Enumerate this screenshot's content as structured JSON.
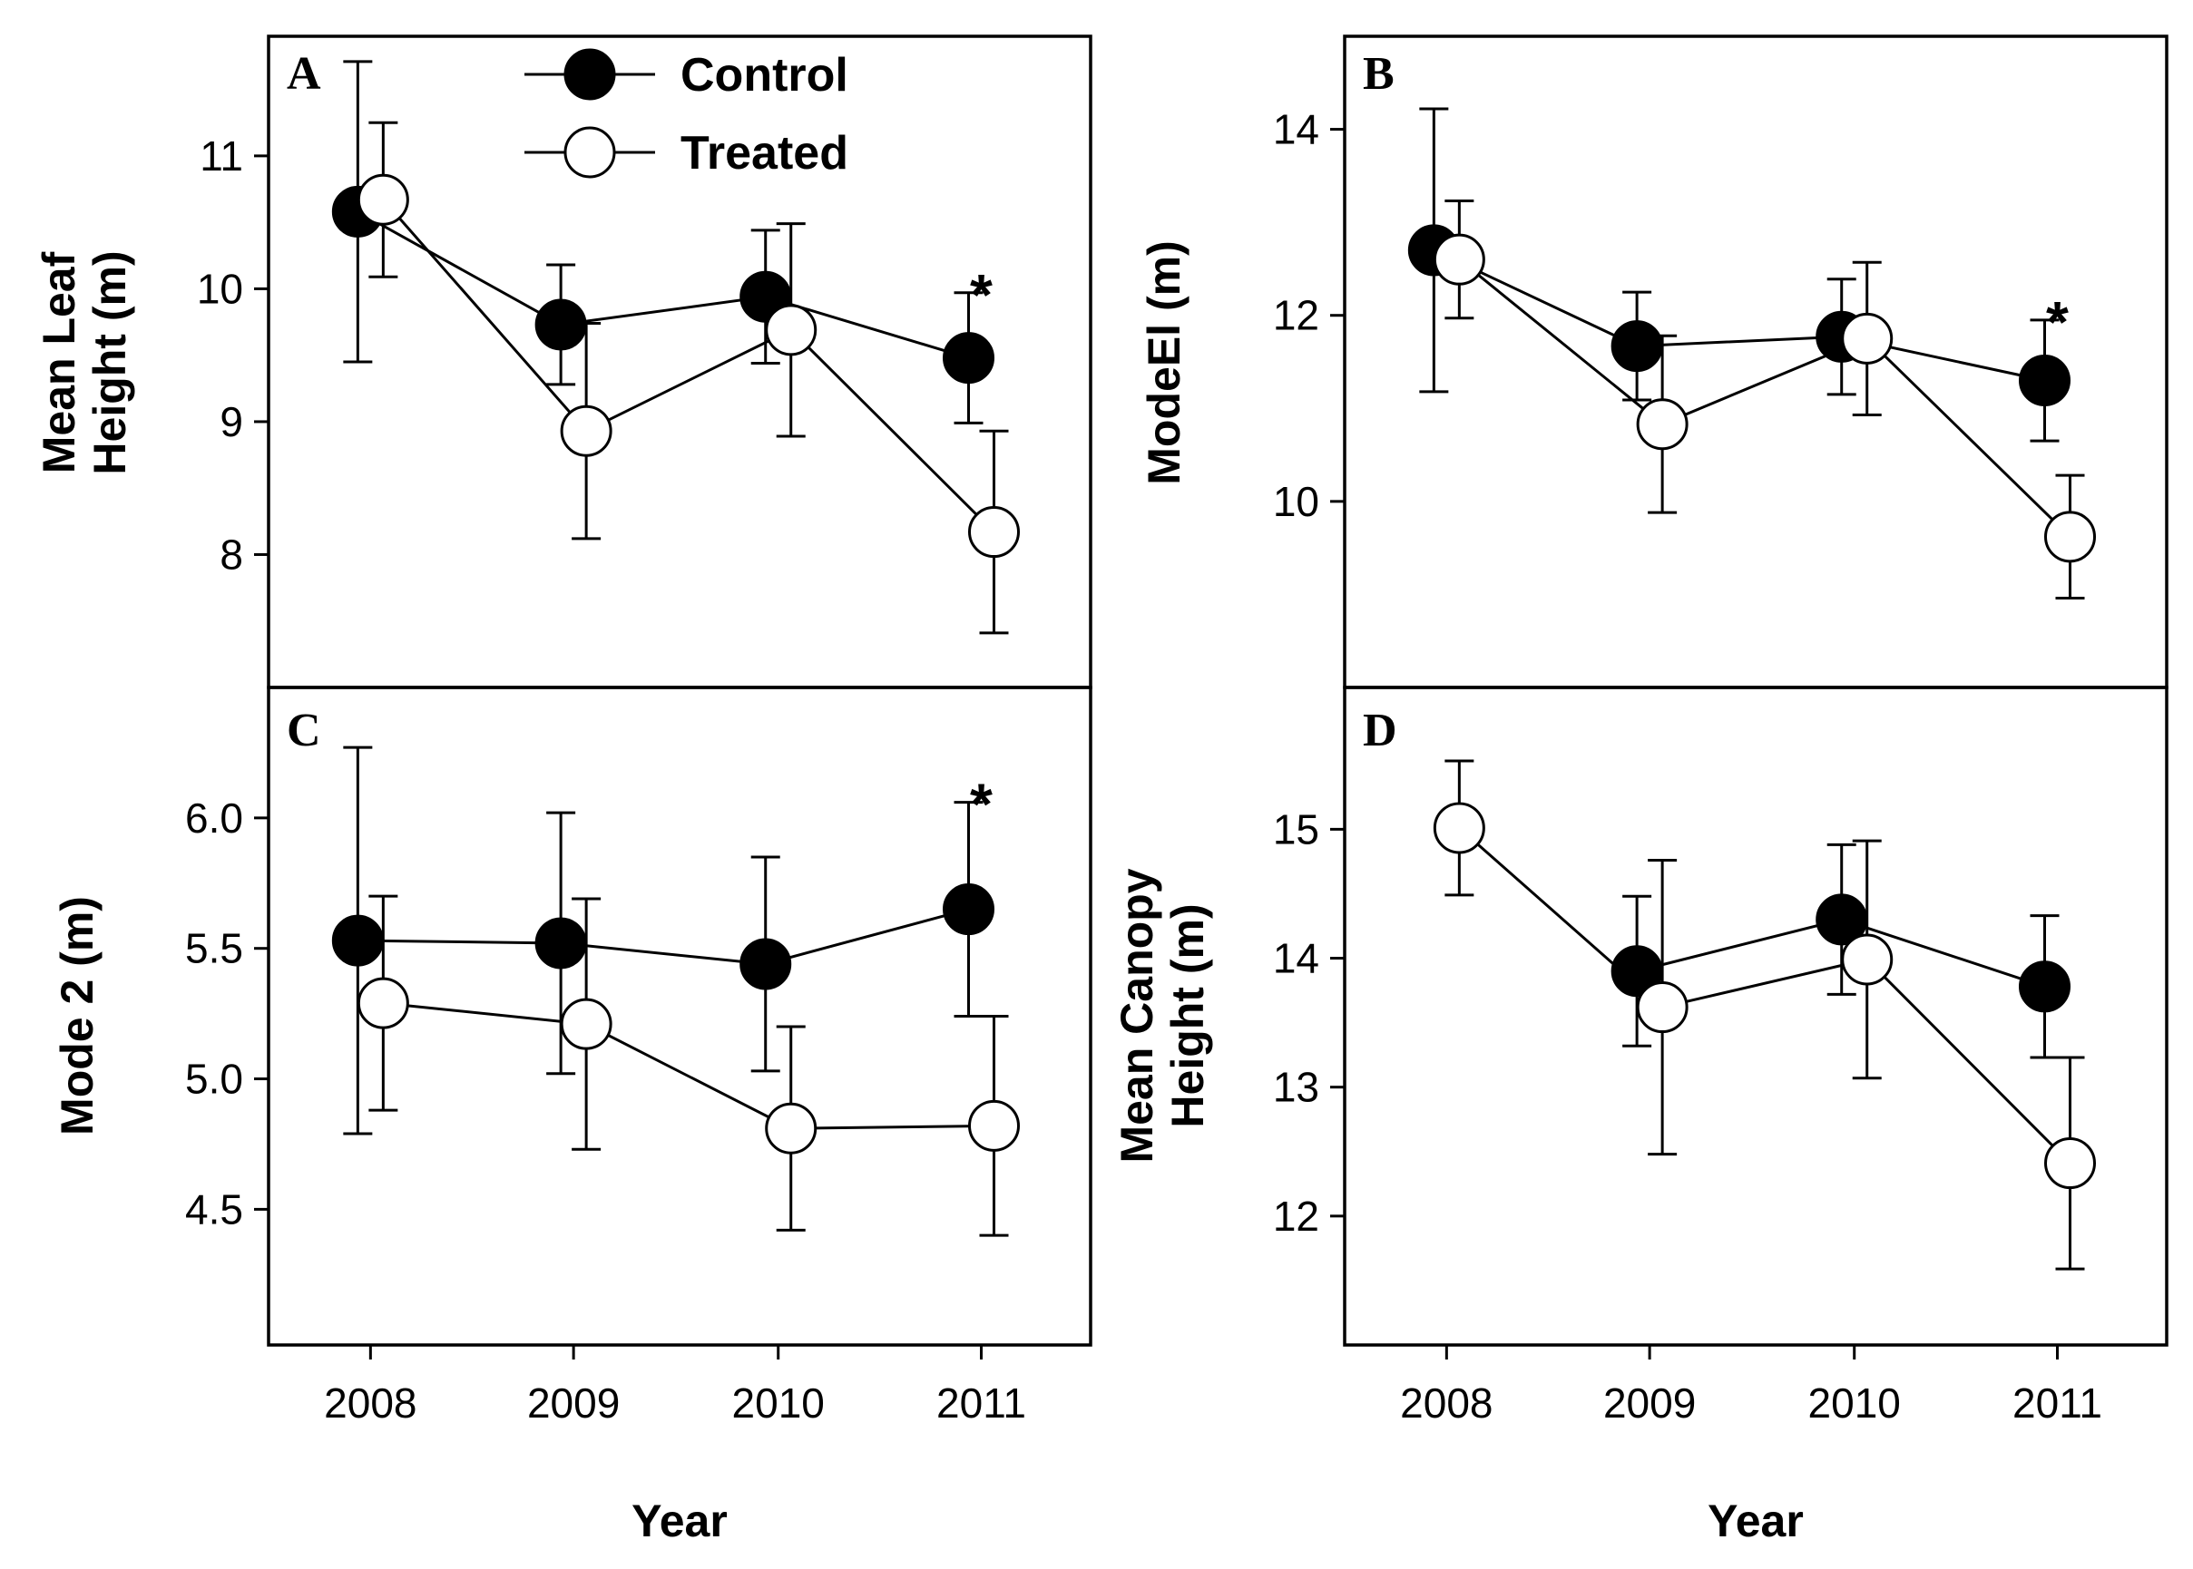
{
  "legend": {
    "control_label": "Control",
    "treated_label": "Treated"
  },
  "colors": {
    "control_fill": "#000000",
    "treated_fill": "#ffffff",
    "stroke": "#000000"
  },
  "chart_data": [
    {
      "id": "A",
      "panel_label": "A",
      "type": "line",
      "xlabel": "",
      "ylabel_lines": [
        "Mean Leaf",
        "Height (m)"
      ],
      "categories": [
        "2008",
        "2009",
        "2010",
        "2011"
      ],
      "ylim": [
        7,
        11.9
      ],
      "yticks": [
        8,
        9,
        10,
        11
      ],
      "ytick_labels": [
        "8",
        "9",
        "10",
        "11"
      ],
      "significant": [
        false,
        false,
        false,
        true
      ],
      "series": [
        {
          "name": "Control",
          "values": [
            10.58,
            9.73,
            9.94,
            9.48
          ],
          "err": [
            1.13,
            0.45,
            0.5,
            0.49
          ]
        },
        {
          "name": "Treated",
          "values": [
            10.67,
            8.93,
            9.69,
            8.17
          ],
          "err": [
            0.58,
            0.81,
            0.8,
            0.76
          ]
        }
      ]
    },
    {
      "id": "B",
      "panel_label": "B",
      "type": "line",
      "xlabel": "",
      "ylabel_lines": [
        "ModeEl (m)"
      ],
      "categories": [
        "2008",
        "2009",
        "2010",
        "2011"
      ],
      "ylim": [
        8,
        15
      ],
      "yticks": [
        10,
        12,
        14
      ],
      "ytick_labels": [
        "10",
        "12",
        "14"
      ],
      "significant": [
        false,
        false,
        false,
        true
      ],
      "series": [
        {
          "name": "Control",
          "values": [
            12.7,
            11.67,
            11.77,
            11.3
          ],
          "err": [
            1.52,
            0.58,
            0.62,
            0.65
          ]
        },
        {
          "name": "Treated",
          "values": [
            12.6,
            10.83,
            11.75,
            9.62
          ],
          "err": [
            0.63,
            0.95,
            0.82,
            0.66
          ]
        }
      ]
    },
    {
      "id": "C",
      "panel_label": "C",
      "type": "line",
      "xlabel": "Year",
      "ylabel_lines": [
        "Mode 2 (m)"
      ],
      "categories": [
        "2008",
        "2009",
        "2010",
        "2011"
      ],
      "ylim": [
        3.98,
        6.5
      ],
      "yticks": [
        4.5,
        5.0,
        5.5,
        6.0
      ],
      "ytick_labels": [
        "4.5",
        "5.0",
        "5.5",
        "6.0"
      ],
      "significant": [
        false,
        false,
        false,
        true
      ],
      "series": [
        {
          "name": "Control",
          "values": [
            5.53,
            5.52,
            5.44,
            5.65
          ],
          "err": [
            0.74,
            0.5,
            0.41,
            0.41
          ]
        },
        {
          "name": "Treated",
          "values": [
            5.29,
            5.21,
            4.81,
            4.82
          ],
          "err": [
            0.41,
            0.48,
            0.39,
            0.42
          ]
        }
      ]
    },
    {
      "id": "D",
      "panel_label": "D",
      "type": "line",
      "xlabel": "Year",
      "ylabel_lines": [
        "Mean Canopy",
        "Height (m)"
      ],
      "categories": [
        "2008",
        "2009",
        "2010",
        "2011"
      ],
      "ylim": [
        11,
        16.1
      ],
      "yticks": [
        12,
        13,
        14,
        15
      ],
      "ytick_labels": [
        "12",
        "13",
        "14",
        "15"
      ],
      "significant": [
        false,
        false,
        false,
        false
      ],
      "series": [
        {
          "name": "Control",
          "values": [
            null,
            13.9,
            14.3,
            13.78
          ],
          "err": [
            null,
            0.58,
            0.58,
            0.55
          ]
        },
        {
          "name": "Treated",
          "values": [
            15.01,
            13.62,
            13.99,
            12.41
          ],
          "err": [
            0.52,
            1.14,
            0.92,
            0.82
          ]
        }
      ]
    }
  ]
}
